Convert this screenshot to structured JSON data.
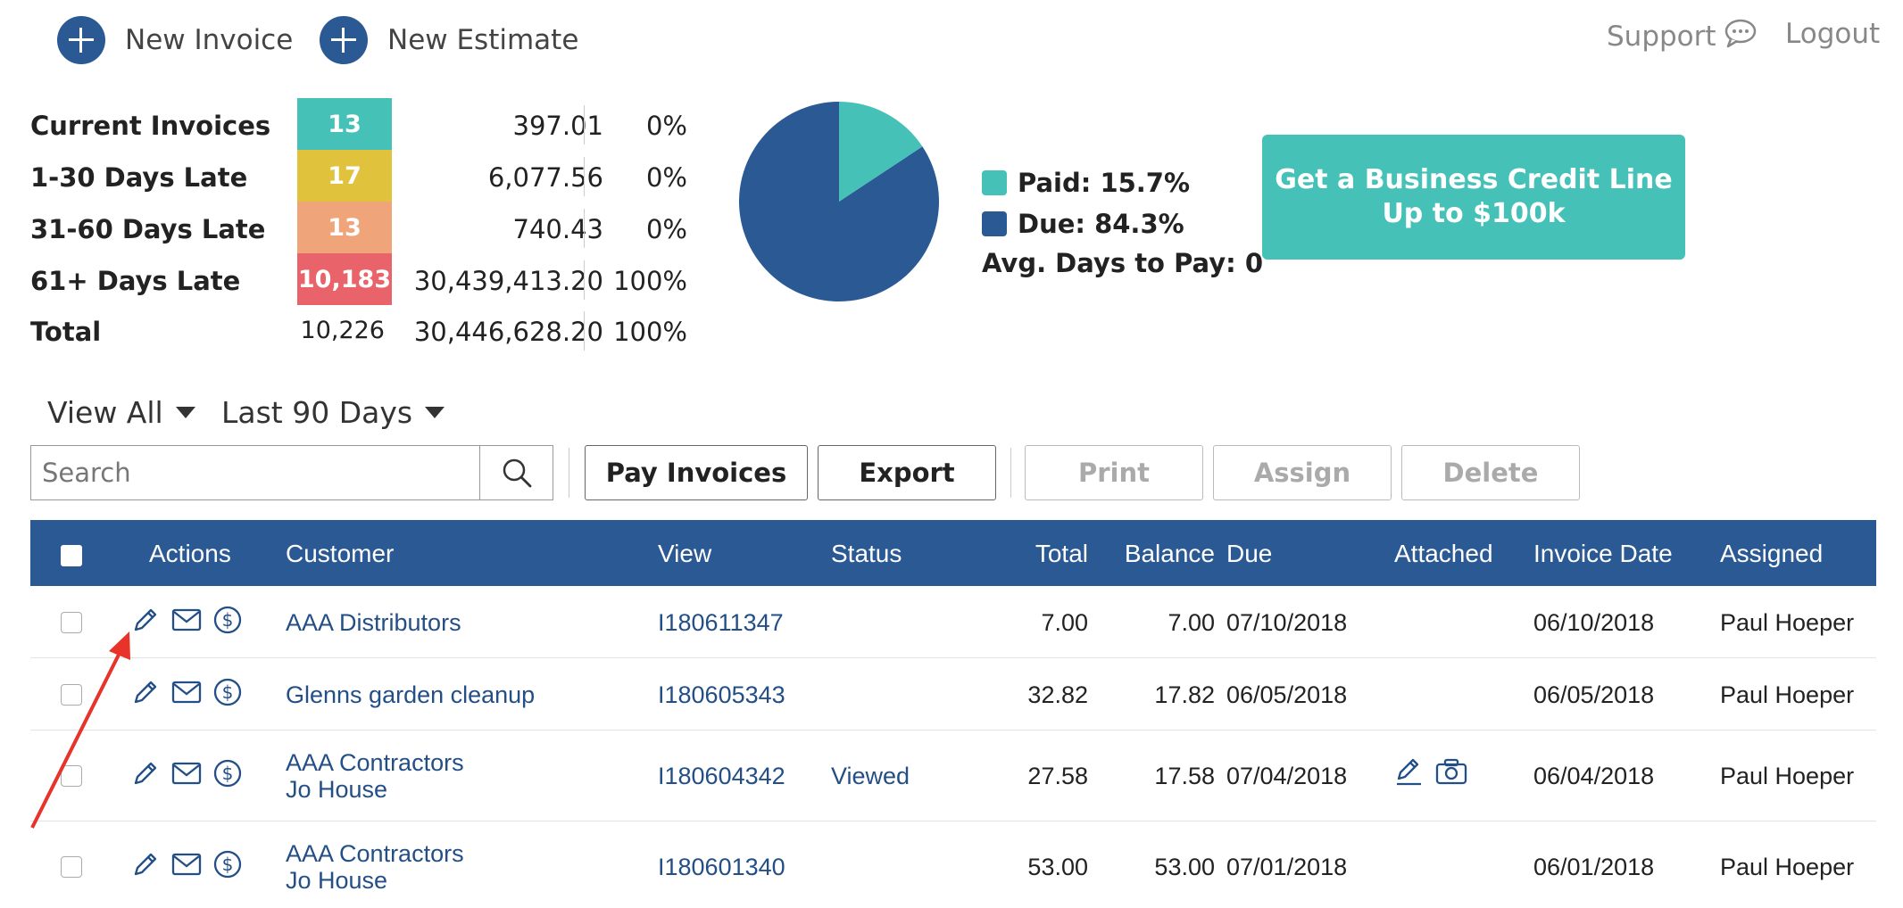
{
  "topbar": {
    "new_invoice": "New Invoice",
    "new_estimate": "New Estimate",
    "support": "Support",
    "logout": "Logout"
  },
  "summary": [
    {
      "label": "Current Invoices",
      "count": "13",
      "amount": "397.01",
      "percent": "0%",
      "color": "#45c1b7"
    },
    {
      "label": "1-30 Days Late",
      "count": "17",
      "amount": "6,077.56",
      "percent": "0%",
      "color": "#e0c23c"
    },
    {
      "label": "31-60 Days Late",
      "count": "13",
      "amount": "740.43",
      "percent": "0%",
      "color": "#f0a47a"
    },
    {
      "label": "61+ Days Late",
      "count": "10,183",
      "amount": "30,439,413.20",
      "percent": "100%",
      "color": "#e8646a"
    },
    {
      "label": "Total",
      "count": "10,226",
      "amount": "30,446,628.20",
      "percent": "100%"
    }
  ],
  "pie": {
    "paid_fraction": 0.157,
    "paid_color": "#45c1b7",
    "due_color": "#2a5994",
    "legend_paid": "Paid: 15.7%",
    "legend_due": "Due: 84.3%",
    "avg_days": "Avg. Days to Pay: 0"
  },
  "credit": {
    "line1": "Get a Business Credit Line",
    "line2": "Up to $100k",
    "color": "#45c1b7"
  },
  "filters": {
    "view": "View All",
    "range": "Last 90 Days"
  },
  "toolbar": {
    "search_placeholder": "Search",
    "pay": "Pay Invoices",
    "export": "Export",
    "print": "Print",
    "assign": "Assign",
    "delete": "Delete"
  },
  "grid": {
    "headers": {
      "actions": "Actions",
      "customer": "Customer",
      "view": "View",
      "status": "Status",
      "total": "Total",
      "balance": "Balance",
      "due": "Due",
      "attached": "Attached",
      "invoice_date": "Invoice Date",
      "assigned": "Assigned"
    },
    "rows": [
      {
        "customer": "AAA Distributors",
        "customer2": "",
        "view": "I180611347",
        "status": "",
        "total": "7.00",
        "balance": "7.00",
        "due": "07/10/2018",
        "attached": false,
        "invoice_date": "06/10/2018",
        "assigned": "Paul Hoeper"
      },
      {
        "customer": "Glenns garden cleanup",
        "customer2": "",
        "view": "I180605343",
        "status": "",
        "total": "32.82",
        "balance": "17.82",
        "due": "06/05/2018",
        "attached": false,
        "invoice_date": "06/05/2018",
        "assigned": "Paul Hoeper"
      },
      {
        "customer": "AAA Contractors",
        "customer2": "Jo House",
        "view": "I180604342",
        "status": "Viewed",
        "total": "27.58",
        "balance": "17.58",
        "due": "07/04/2018",
        "attached": true,
        "invoice_date": "06/04/2018",
        "assigned": "Paul Hoeper"
      },
      {
        "customer": "AAA Contractors",
        "customer2": "Jo House",
        "view": "I180601340",
        "status": "",
        "total": "53.00",
        "balance": "53.00",
        "due": "07/01/2018",
        "attached": false,
        "invoice_date": "06/01/2018",
        "assigned": "Paul Hoeper"
      }
    ]
  }
}
